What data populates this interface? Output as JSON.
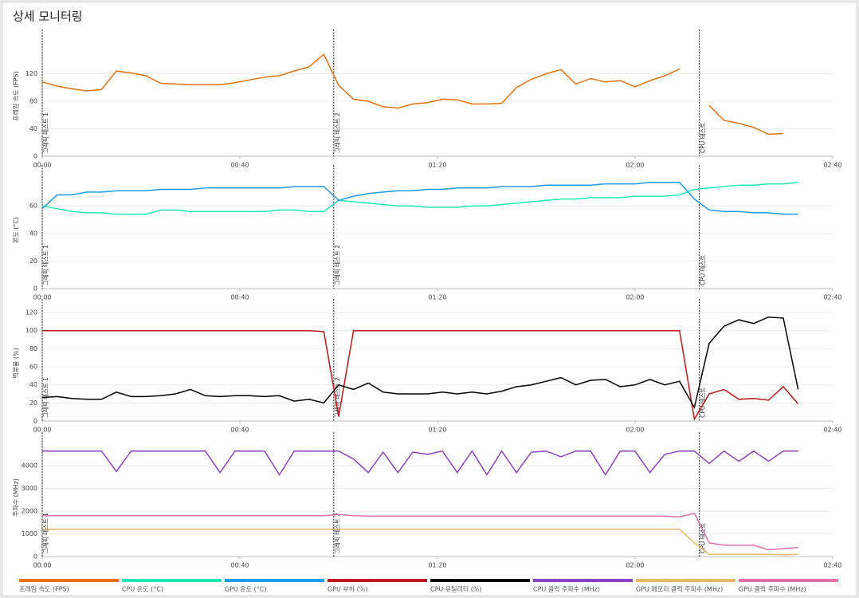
{
  "title": "상세 모니터링",
  "chart_data": [
    {
      "type": "line",
      "ylabel": "프레임 속도 (FPS)",
      "xlim": [
        0,
        160
      ],
      "ylim": [
        0,
        175
      ],
      "yticks": [
        0,
        40,
        80,
        120
      ],
      "xticks": [
        {
          "value": 0,
          "label": "00:00"
        },
        {
          "value": 40,
          "label": "00:40"
        },
        {
          "value": 80,
          "label": "01:20"
        },
        {
          "value": 120,
          "label": "02:00"
        },
        {
          "value": 160,
          "label": "02:40"
        }
      ],
      "annotations": [
        {
          "x": 0,
          "label": "그래픽 테스트 1"
        },
        {
          "x": 59,
          "label": "그래픽 테스트 2"
        },
        {
          "x": 133,
          "label": "CPU 테스트"
        }
      ],
      "x": [
        0,
        3,
        6,
        9,
        12,
        15,
        18,
        21,
        24,
        27,
        30,
        33,
        36,
        39,
        42,
        45,
        48,
        51,
        54,
        57,
        60,
        63,
        66,
        69,
        72,
        75,
        78,
        81,
        84,
        87,
        90,
        93,
        96,
        99,
        102,
        105,
        108,
        111,
        114,
        117,
        120,
        123,
        126,
        129,
        132,
        135,
        138,
        141,
        144,
        147,
        150,
        153,
        156
      ],
      "series": [
        {
          "name": "프레임 속도 (FPS)",
          "color": "#e8700d",
          "values": [
            108,
            102,
            98,
            95,
            97,
            124,
            121,
            117,
            106,
            105,
            104,
            104,
            104,
            107,
            111,
            115,
            117,
            124,
            130,
            148,
            103,
            83,
            80,
            72,
            70,
            76,
            78,
            83,
            82,
            76,
            76,
            77,
            100,
            112,
            120,
            126,
            105,
            113,
            108,
            110,
            101,
            110,
            117,
            127,
            null,
            74,
            52,
            48,
            42,
            32,
            33,
            null,
            null
          ]
        }
      ]
    },
    {
      "type": "line",
      "ylabel": "온도 (°C)",
      "xlim": [
        0,
        160
      ],
      "ylim": [
        0,
        85
      ],
      "yticks": [
        0,
        20,
        40,
        60
      ],
      "xticks": [
        {
          "value": 0,
          "label": "00:00"
        },
        {
          "value": 40,
          "label": "00:40"
        },
        {
          "value": 80,
          "label": "01:20"
        },
        {
          "value": 120,
          "label": "02:00"
        },
        {
          "value": 160,
          "label": "02:40"
        }
      ],
      "annotations": [
        {
          "x": 0,
          "label": "그래픽 테스트 1"
        },
        {
          "x": 59,
          "label": "그래픽 테스트 2"
        },
        {
          "x": 133,
          "label": "CPU 테스트"
        }
      ],
      "x": [
        0,
        3,
        6,
        9,
        12,
        15,
        18,
        21,
        24,
        27,
        30,
        33,
        36,
        39,
        42,
        45,
        48,
        51,
        54,
        57,
        60,
        63,
        66,
        69,
        72,
        75,
        78,
        81,
        84,
        87,
        90,
        93,
        96,
        99,
        102,
        105,
        108,
        111,
        114,
        117,
        120,
        123,
        126,
        129,
        132,
        135,
        138,
        141,
        144,
        147,
        150,
        153,
        156
      ],
      "series": [
        {
          "name": "CPU 온도 (°C)",
          "color": "#1de9b6",
          "values": [
            60,
            58,
            56,
            55,
            55,
            54,
            54,
            54,
            57,
            57,
            56,
            56,
            56,
            56,
            56,
            56,
            57,
            57,
            56,
            56,
            64,
            63,
            62,
            61,
            60,
            60,
            59,
            59,
            59,
            60,
            60,
            61,
            62,
            63,
            64,
            65,
            65,
            66,
            66,
            66,
            67,
            67,
            67,
            68,
            72,
            73,
            74,
            75,
            75,
            76,
            76,
            77,
            null
          ]
        },
        {
          "name": "GPU 온도 (°C)",
          "color": "#1e9be8",
          "values": [
            58,
            68,
            68,
            70,
            70,
            71,
            71,
            71,
            72,
            72,
            72,
            73,
            73,
            73,
            73,
            73,
            73,
            74,
            74,
            74,
            64,
            67,
            69,
            70,
            71,
            71,
            72,
            72,
            73,
            73,
            73,
            74,
            74,
            74,
            75,
            75,
            75,
            75,
            76,
            76,
            76,
            77,
            77,
            77,
            65,
            57,
            56,
            56,
            55,
            55,
            54,
            54,
            null
          ]
        }
      ]
    },
    {
      "type": "line",
      "ylabel": "백분율 (%)",
      "xlim": [
        0,
        160
      ],
      "ylim": [
        0,
        128
      ],
      "yticks": [
        0,
        20,
        40,
        60,
        80,
        100,
        120
      ],
      "xticks": [
        {
          "value": 0,
          "label": "00:00"
        },
        {
          "value": 40,
          "label": "00:40"
        },
        {
          "value": 80,
          "label": "01:20"
        },
        {
          "value": 120,
          "label": "02:00"
        },
        {
          "value": 160,
          "label": "02:40"
        }
      ],
      "annotations": [
        {
          "x": 0,
          "label": "그래픽 테스트 1"
        },
        {
          "x": 59,
          "label": "그래픽 테스트 2"
        },
        {
          "x": 133,
          "label": "CPU 테스트"
        }
      ],
      "x": [
        0,
        3,
        6,
        9,
        12,
        15,
        18,
        21,
        24,
        27,
        30,
        33,
        36,
        39,
        42,
        45,
        48,
        51,
        54,
        57,
        60,
        63,
        66,
        69,
        72,
        75,
        78,
        81,
        84,
        87,
        90,
        93,
        96,
        99,
        102,
        105,
        108,
        111,
        114,
        117,
        120,
        123,
        126,
        129,
        132,
        135,
        138,
        141,
        144,
        147,
        150,
        153,
        156
      ],
      "series": [
        {
          "name": "GPU 부하 (%)",
          "color": "#c0161b",
          "values": [
            100,
            100,
            100,
            100,
            100,
            100,
            100,
            100,
            100,
            100,
            100,
            100,
            100,
            100,
            100,
            100,
            100,
            100,
            100,
            99,
            5,
            100,
            100,
            100,
            100,
            100,
            100,
            100,
            100,
            100,
            100,
            100,
            100,
            100,
            100,
            100,
            100,
            100,
            100,
            100,
            100,
            100,
            100,
            100,
            2,
            30,
            35,
            24,
            25,
            23,
            38,
            19,
            null
          ]
        },
        {
          "name": "CPU 유틸리티 (%)",
          "color": "#000000",
          "values": [
            26,
            27,
            25,
            24,
            24,
            32,
            27,
            27,
            28,
            30,
            35,
            28,
            27,
            28,
            28,
            27,
            28,
            22,
            24,
            20,
            40,
            35,
            42,
            32,
            30,
            30,
            30,
            32,
            30,
            32,
            30,
            33,
            38,
            40,
            44,
            48,
            40,
            45,
            46,
            38,
            40,
            46,
            40,
            44,
            15,
            86,
            105,
            112,
            108,
            115,
            114,
            35,
            null
          ]
        }
      ]
    },
    {
      "type": "line",
      "ylabel": "주파수 (MHz)",
      "xlim": [
        0,
        160
      ],
      "ylim": [
        0,
        5200
      ],
      "yticks": [
        0,
        1000,
        2000,
        3000,
        4000
      ],
      "xticks": [
        {
          "value": 0,
          "label": "00:00"
        },
        {
          "value": 40,
          "label": "00:40"
        },
        {
          "value": 80,
          "label": "01:20"
        },
        {
          "value": 120,
          "label": "02:00"
        },
        {
          "value": 160,
          "label": "02:40"
        }
      ],
      "annotations": [
        {
          "x": 0,
          "label": "그래픽 테스트 1"
        },
        {
          "x": 59,
          "label": "그래픽 테스트 2"
        },
        {
          "x": 133,
          "label": "CPU 테스트"
        }
      ],
      "x": [
        0,
        3,
        6,
        9,
        12,
        15,
        18,
        21,
        24,
        27,
        30,
        33,
        36,
        39,
        42,
        45,
        48,
        51,
        54,
        57,
        60,
        63,
        66,
        69,
        72,
        75,
        78,
        81,
        84,
        87,
        90,
        93,
        96,
        99,
        102,
        105,
        108,
        111,
        114,
        117,
        120,
        123,
        126,
        129,
        132,
        135,
        138,
        141,
        144,
        147,
        150,
        153,
        156
      ],
      "series": [
        {
          "name": "CPU 클럭 주파수 (MHz)",
          "color": "#8e3fc5",
          "values": [
            4650,
            4650,
            4650,
            4650,
            4650,
            3750,
            4650,
            4650,
            4650,
            4650,
            4650,
            4650,
            3700,
            4650,
            4650,
            4650,
            3600,
            4650,
            4650,
            4650,
            4650,
            4300,
            3700,
            4600,
            3700,
            4600,
            4500,
            4650,
            3700,
            4650,
            3600,
            4650,
            3700,
            4600,
            4650,
            4400,
            4650,
            4650,
            3600,
            4650,
            4650,
            3700,
            4500,
            4650,
            4650,
            4100,
            4650,
            4200,
            4650,
            4200,
            4650,
            4650,
            null
          ]
        },
        {
          "name": "GPU 메모리 클럭 주파수 (MHz)",
          "color": "#e8b86a",
          "values": [
            1200,
            1200,
            1200,
            1200,
            1200,
            1200,
            1200,
            1200,
            1200,
            1200,
            1200,
            1200,
            1200,
            1200,
            1200,
            1200,
            1200,
            1200,
            1200,
            1200,
            1200,
            1200,
            1200,
            1200,
            1200,
            1200,
            1200,
            1200,
            1200,
            1200,
            1200,
            1200,
            1200,
            1200,
            1200,
            1200,
            1200,
            1200,
            1200,
            1200,
            1200,
            1200,
            1200,
            1200,
            600,
            100,
            100,
            100,
            100,
            100,
            80,
            100,
            null
          ]
        },
        {
          "name": "GPU 클럭 주파수 (MHz)",
          "color": "#e26fa8",
          "values": [
            1800,
            1800,
            1800,
            1800,
            1800,
            1800,
            1800,
            1800,
            1800,
            1800,
            1800,
            1800,
            1800,
            1800,
            1800,
            1800,
            1800,
            1800,
            1800,
            1800,
            1850,
            1800,
            1780,
            1780,
            1780,
            1780,
            1780,
            1780,
            1780,
            1780,
            1780,
            1780,
            1780,
            1780,
            1780,
            1780,
            1780,
            1780,
            1780,
            1780,
            1780,
            1780,
            1780,
            1750,
            1900,
            600,
            500,
            500,
            500,
            300,
            350,
            400,
            null
          ]
        }
      ]
    }
  ]
}
